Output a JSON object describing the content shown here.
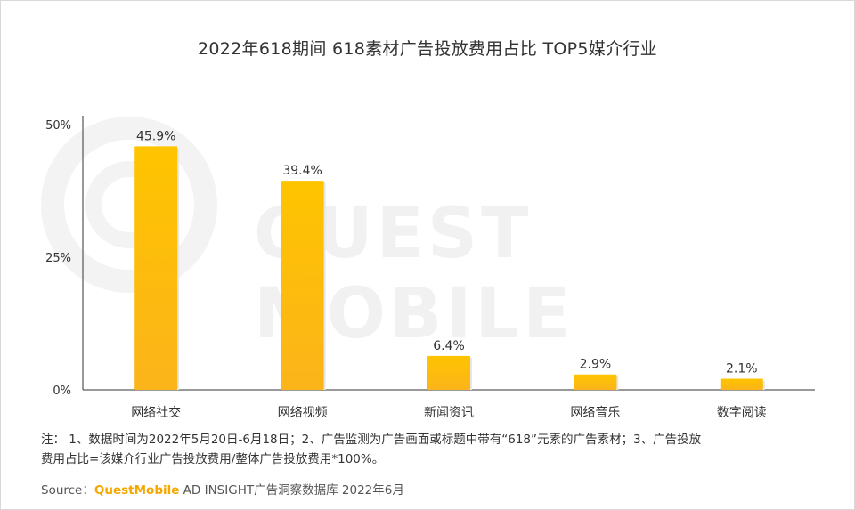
{
  "title": "2022年618期间 618素材广告投放费用占比 TOP5媒介行业",
  "watermark": "QUEST MOBILE",
  "note": {
    "line1": "注： 1、数据时间为2022年5月20日-6月18日；2、广告监测为广告画面或标题中带有“618”元素的广告素材；3、广告投放",
    "line2": "费用占比=该媒介行业广告投放费用/整体广告投放费用*100%。"
  },
  "source": {
    "prefix": "Source：",
    "brand": "QuestMobile",
    "rest": " AD INSIGHT广告洞察数据库 2022年6月"
  },
  "colors": {
    "bar_top": "#ffc400",
    "bar_bottom": "#fbb41a",
    "axis": "#333333",
    "brand": "#f5a800"
  },
  "chart_data": {
    "type": "bar",
    "categories": [
      "网络社交",
      "网络视频",
      "新闻资讯",
      "网络音乐",
      "数字阅读"
    ],
    "values": [
      45.9,
      39.4,
      6.4,
      2.9,
      2.1
    ],
    "data_labels": [
      "45.9%",
      "39.4%",
      "6.4%",
      "2.9%",
      "2.1%"
    ],
    "yticks": [
      "0%",
      "25%",
      "50%"
    ],
    "ytick_values": [
      0,
      25,
      50
    ],
    "ylim": [
      0,
      50
    ],
    "grid": false,
    "legend": "none"
  }
}
